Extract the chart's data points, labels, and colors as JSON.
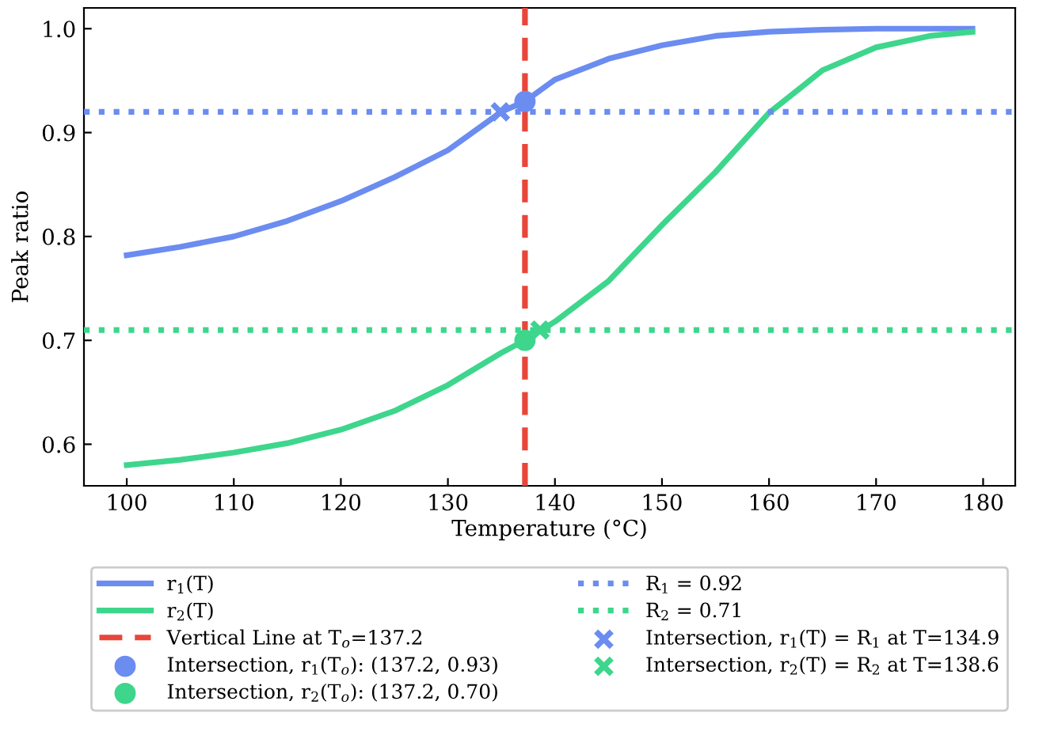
{
  "chart_data": {
    "type": "line",
    "xlabel": "Temperature (°C)",
    "ylabel": "Peak ratio",
    "xlim": [
      96,
      183
    ],
    "ylim": [
      0.56,
      1.02
    ],
    "xticks": [
      100,
      110,
      120,
      130,
      140,
      150,
      160,
      170,
      180
    ],
    "yticks": [
      0.6,
      0.7,
      0.8,
      0.9,
      {
        "value": 1.0,
        "label": "1.0"
      }
    ],
    "grid": false,
    "legend": "bottom",
    "line_style": "solid",
    "series": [
      {
        "name": "r$_{1}$(T)",
        "color": "#6b8cf0",
        "x": [
          100,
          105,
          110,
          115,
          120,
          125,
          130,
          135,
          137.2,
          140,
          145,
          150,
          155,
          160,
          165,
          170,
          179
        ],
        "values": [
          0.782,
          0.79,
          0.8,
          0.815,
          0.834,
          0.857,
          0.883,
          0.92,
          0.93,
          0.951,
          0.971,
          0.984,
          0.993,
          0.997,
          0.999,
          1.0,
          1.0
        ]
      },
      {
        "name": "r$_{2}$(T)",
        "color": "#3dd68c",
        "x": [
          100,
          105,
          110,
          115,
          120,
          125,
          130,
          135,
          137.2,
          140,
          145,
          150,
          155,
          160,
          165,
          170,
          175,
          179
        ],
        "values": [
          0.58,
          0.585,
          0.592,
          0.601,
          0.614,
          0.632,
          0.657,
          0.688,
          0.7,
          0.718,
          0.757,
          0.811,
          0.862,
          0.919,
          0.96,
          0.982,
          0.993,
          0.997
        ]
      },
      {
        "name": "Intersection, r$_{1}$(T$_{o}$): (137.2, 0.93)",
        "type": "scatter",
        "marker": "circle",
        "color": "#6b8cf0",
        "x": [
          137.2
        ],
        "values": [
          0.93
        ]
      },
      {
        "name": "Intersection, r$_{2}$(T$_{o}$): (137.2, 0.70)",
        "type": "scatter",
        "marker": "circle",
        "color": "#3dd68c",
        "x": [
          137.2
        ],
        "values": [
          0.7
        ]
      },
      {
        "name": "Intersection, r$_{1}$(T) = R$_{1}$ at T=134.9",
        "type": "scatter",
        "marker": "cross",
        "color": "#6b8cf0",
        "x": [
          134.9
        ],
        "values": [
          0.92
        ]
      },
      {
        "name": "Intersection, r$_{2}$(T) = R$_{2}$ at T=138.6",
        "type": "scatter",
        "marker": "cross",
        "color": "#3dd68c",
        "x": [
          138.6
        ],
        "values": [
          0.71
        ]
      }
    ],
    "ref_lines": [
      {
        "axis": "x",
        "value": 137.2,
        "label": "Vertical Line at T$_{o}$=137.2",
        "color": "#e8463a",
        "line_style": "dashed"
      },
      {
        "axis": "y",
        "value": 0.92,
        "label": "R$_{1}$ = 0.92",
        "color": "#6b8cf0",
        "line_style": "dotted"
      },
      {
        "axis": "y",
        "value": 0.71,
        "label": "R$_{2}$ = 0.71",
        "color": "#3dd68c",
        "line_style": "dotted"
      }
    ]
  }
}
